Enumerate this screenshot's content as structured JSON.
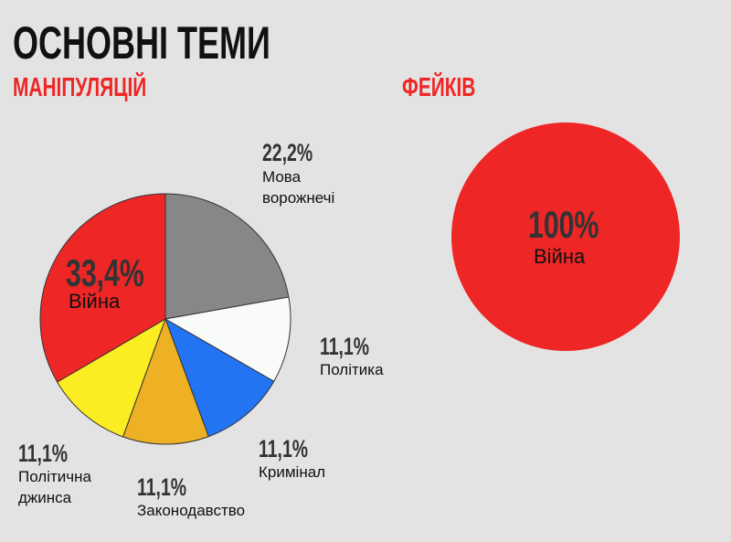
{
  "title": "ОСНОВНІ ТЕМИ",
  "chart_data": [
    {
      "type": "pie",
      "title": "МАНІПУЛЯЦІЙ",
      "categories": [
        "Мова ворожнечі",
        "Політика",
        "Кримінал",
        "Законодавство",
        "Політична джинса",
        "Війна"
      ],
      "values": [
        22.2,
        11.1,
        11.1,
        11.1,
        11.1,
        33.4
      ],
      "value_labels": [
        "22,2%",
        "11,1%",
        "11,1%",
        "11,1%",
        "11,1%",
        "33,4%"
      ],
      "colors": [
        "#878787",
        "#f8fbf8",
        "#2274f2",
        "#eeb024",
        "#fcec22",
        "#ee2626"
      ]
    },
    {
      "type": "pie",
      "title": "ФЕЙКІВ",
      "categories": [
        "Війна"
      ],
      "values": [
        100
      ],
      "value_labels": [
        "100%"
      ],
      "colors": [
        "#ee2626"
      ]
    }
  ]
}
